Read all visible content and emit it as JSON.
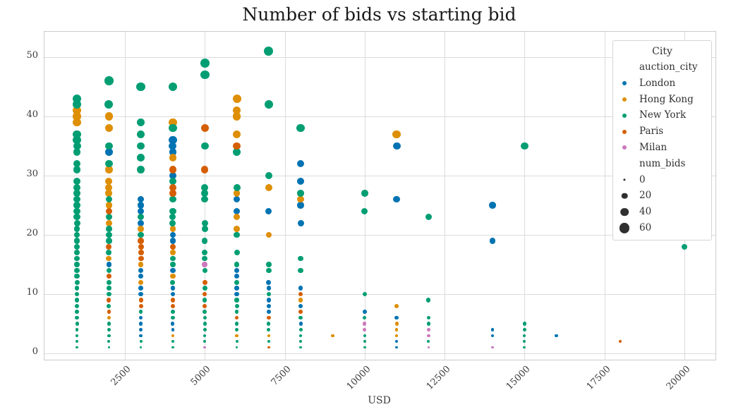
{
  "title": "Number of bids vs starting bid",
  "x_axis_label": "USD",
  "colors": {
    "London": "#0173b2",
    "Hong Kong": "#de8f05",
    "New York": "#029e73",
    "Paris": "#d55e00",
    "Milan": "#cc78bc",
    "size_marker": "#2f2f2f",
    "gridline": "#dcdcdc"
  },
  "legend": {
    "title": "City",
    "hue_header": "auction_city",
    "cities": [
      {
        "label": "London",
        "color": "#0173b2"
      },
      {
        "label": "Hong Kong",
        "color": "#de8f05"
      },
      {
        "label": "New York",
        "color": "#029e73"
      },
      {
        "label": "Paris",
        "color": "#d55e00"
      },
      {
        "label": "Milan",
        "color": "#cc78bc"
      }
    ],
    "size_header": "num_bids",
    "sizes": [
      {
        "label": "0",
        "value": 0
      },
      {
        "label": "20",
        "value": 20
      },
      {
        "label": "40",
        "value": 40
      },
      {
        "label": "60",
        "value": 60
      }
    ]
  },
  "chart_data": {
    "type": "scatter",
    "title": "Number of bids vs starting bid",
    "xlabel": "USD",
    "ylabel": "",
    "x_ticks": [
      2500,
      5000,
      7500,
      10000,
      12500,
      15000,
      17500,
      20000
    ],
    "y_ticks": [
      0,
      10,
      20,
      30,
      40,
      50
    ],
    "xlim": [
      0,
      21000
    ],
    "ylim": [
      -1,
      54
    ],
    "grid": true,
    "legend_position": "upper right",
    "size_encoding": "num_bids equals y value, size range ~0-60",
    "series": [
      {
        "name": "London",
        "color": "#0173b2",
        "points": [
          [
            2000,
            34
          ],
          [
            2000,
            15
          ],
          [
            3000,
            26
          ],
          [
            3000,
            25
          ],
          [
            3000,
            24
          ],
          [
            3000,
            22
          ],
          [
            3000,
            14
          ],
          [
            3000,
            13
          ],
          [
            3000,
            11
          ],
          [
            3000,
            10
          ],
          [
            3000,
            6
          ],
          [
            3000,
            5
          ],
          [
            3000,
            4
          ],
          [
            3000,
            3
          ],
          [
            4000,
            36
          ],
          [
            4000,
            35
          ],
          [
            4000,
            34
          ],
          [
            4000,
            30
          ],
          [
            4000,
            20
          ],
          [
            4000,
            19
          ],
          [
            4000,
            14
          ],
          [
            4000,
            11
          ],
          [
            4000,
            10
          ],
          [
            4000,
            5
          ],
          [
            4000,
            4
          ],
          [
            6000,
            26
          ],
          [
            6000,
            24
          ],
          [
            6000,
            14
          ],
          [
            6000,
            13
          ],
          [
            6000,
            11
          ],
          [
            6000,
            10
          ],
          [
            7000,
            24
          ],
          [
            7000,
            12
          ],
          [
            7000,
            11
          ],
          [
            7000,
            9
          ],
          [
            7000,
            8
          ],
          [
            7000,
            7
          ],
          [
            8000,
            32
          ],
          [
            8000,
            29
          ],
          [
            8000,
            25
          ],
          [
            8000,
            22
          ],
          [
            8000,
            11
          ],
          [
            8000,
            8
          ],
          [
            8000,
            5
          ],
          [
            10000,
            7
          ],
          [
            11000,
            35
          ],
          [
            11000,
            26
          ],
          [
            11000,
            6
          ],
          [
            11000,
            2
          ],
          [
            11000,
            1
          ],
          [
            14000,
            25
          ],
          [
            14000,
            19
          ],
          [
            14000,
            4
          ],
          [
            14000,
            3
          ],
          [
            16000,
            3
          ]
        ]
      },
      {
        "name": "Hong Kong",
        "color": "#de8f05",
        "points": [
          [
            1000,
            41
          ],
          [
            1000,
            40
          ],
          [
            1000,
            39
          ],
          [
            2000,
            40
          ],
          [
            2000,
            38
          ],
          [
            2000,
            31
          ],
          [
            2000,
            29
          ],
          [
            2000,
            28
          ],
          [
            2000,
            27
          ],
          [
            2000,
            25
          ],
          [
            2000,
            22
          ],
          [
            2000,
            16
          ],
          [
            2000,
            6
          ],
          [
            3000,
            21
          ],
          [
            3000,
            15
          ],
          [
            3000,
            12
          ],
          [
            4000,
            39
          ],
          [
            4000,
            33
          ],
          [
            4000,
            21
          ],
          [
            4000,
            17
          ],
          [
            4000,
            13
          ],
          [
            4000,
            3
          ],
          [
            6000,
            43
          ],
          [
            6000,
            41
          ],
          [
            6000,
            40
          ],
          [
            6000,
            37
          ],
          [
            6000,
            27
          ],
          [
            6000,
            23
          ],
          [
            6000,
            21
          ],
          [
            6000,
            3
          ],
          [
            7000,
            28
          ],
          [
            7000,
            20
          ],
          [
            7000,
            3
          ],
          [
            8000,
            26
          ],
          [
            8000,
            9
          ],
          [
            9000,
            3
          ],
          [
            11000,
            37
          ],
          [
            11000,
            8
          ],
          [
            11000,
            5
          ],
          [
            11000,
            4
          ],
          [
            11000,
            3
          ]
        ]
      },
      {
        "name": "New York",
        "color": "#029e73",
        "points": [
          [
            1000,
            43
          ],
          [
            1000,
            42
          ],
          [
            1000,
            37
          ],
          [
            1000,
            36
          ],
          [
            1000,
            35
          ],
          [
            1000,
            34
          ],
          [
            1000,
            32
          ],
          [
            1000,
            31
          ],
          [
            1000,
            29
          ],
          [
            1000,
            28
          ],
          [
            1000,
            27
          ],
          [
            1000,
            26
          ],
          [
            1000,
            25
          ],
          [
            1000,
            24
          ],
          [
            1000,
            23
          ],
          [
            1000,
            22
          ],
          [
            1000,
            21
          ],
          [
            1000,
            20
          ],
          [
            1000,
            19
          ],
          [
            1000,
            18
          ],
          [
            1000,
            17
          ],
          [
            1000,
            16
          ],
          [
            1000,
            15
          ],
          [
            1000,
            14
          ],
          [
            1000,
            13
          ],
          [
            1000,
            12
          ],
          [
            1000,
            11
          ],
          [
            1000,
            10
          ],
          [
            1000,
            9
          ],
          [
            1000,
            8
          ],
          [
            1000,
            7
          ],
          [
            1000,
            6
          ],
          [
            1000,
            5
          ],
          [
            1000,
            4
          ],
          [
            1000,
            3
          ],
          [
            1000,
            2
          ],
          [
            1000,
            1
          ],
          [
            2000,
            46
          ],
          [
            2000,
            42
          ],
          [
            2000,
            35
          ],
          [
            2000,
            32
          ],
          [
            2000,
            26
          ],
          [
            2000,
            23
          ],
          [
            2000,
            21
          ],
          [
            2000,
            20
          ],
          [
            2000,
            19
          ],
          [
            2000,
            17
          ],
          [
            2000,
            14
          ],
          [
            2000,
            12
          ],
          [
            2000,
            11
          ],
          [
            2000,
            10
          ],
          [
            2000,
            8
          ],
          [
            2000,
            5
          ],
          [
            2000,
            4
          ],
          [
            2000,
            3
          ],
          [
            2000,
            2
          ],
          [
            2000,
            1
          ],
          [
            3000,
            45
          ],
          [
            3000,
            39
          ],
          [
            3000,
            37
          ],
          [
            3000,
            35
          ],
          [
            3000,
            33
          ],
          [
            3000,
            31
          ],
          [
            3000,
            23
          ],
          [
            3000,
            20
          ],
          [
            3000,
            7
          ],
          [
            3000,
            2
          ],
          [
            3000,
            1
          ],
          [
            4000,
            45
          ],
          [
            4000,
            38
          ],
          [
            4000,
            29
          ],
          [
            4000,
            26
          ],
          [
            4000,
            24
          ],
          [
            4000,
            23
          ],
          [
            4000,
            22
          ],
          [
            4000,
            16
          ],
          [
            4000,
            15
          ],
          [
            4000,
            12
          ],
          [
            4000,
            7
          ],
          [
            4000,
            6
          ],
          [
            4000,
            2
          ],
          [
            4000,
            1
          ],
          [
            5000,
            49
          ],
          [
            5000,
            47
          ],
          [
            5000,
            35
          ],
          [
            5000,
            28
          ],
          [
            5000,
            27
          ],
          [
            5000,
            26
          ],
          [
            5000,
            22
          ],
          [
            5000,
            21
          ],
          [
            5000,
            19
          ],
          [
            5000,
            17
          ],
          [
            5000,
            16
          ],
          [
            5000,
            14
          ],
          [
            5000,
            11
          ],
          [
            5000,
            9
          ],
          [
            5000,
            7
          ],
          [
            5000,
            6
          ],
          [
            5000,
            5
          ],
          [
            5000,
            4
          ],
          [
            5000,
            3
          ],
          [
            5000,
            2
          ],
          [
            6000,
            34
          ],
          [
            6000,
            28
          ],
          [
            6000,
            20
          ],
          [
            6000,
            17
          ],
          [
            6000,
            15
          ],
          [
            6000,
            12
          ],
          [
            6000,
            9
          ],
          [
            6000,
            8
          ],
          [
            6000,
            7
          ],
          [
            6000,
            5
          ],
          [
            6000,
            4
          ],
          [
            6000,
            2
          ],
          [
            6000,
            1
          ],
          [
            7000,
            51
          ],
          [
            7000,
            42
          ],
          [
            7000,
            30
          ],
          [
            7000,
            15
          ],
          [
            7000,
            14
          ],
          [
            7000,
            10
          ],
          [
            7000,
            5
          ],
          [
            7000,
            4
          ],
          [
            7000,
            2
          ],
          [
            8000,
            38
          ],
          [
            8000,
            27
          ],
          [
            8000,
            16
          ],
          [
            8000,
            14
          ],
          [
            8000,
            6
          ],
          [
            8000,
            4
          ],
          [
            8000,
            3
          ],
          [
            8000,
            2
          ],
          [
            8000,
            1
          ],
          [
            10000,
            27
          ],
          [
            10000,
            24
          ],
          [
            10000,
            10
          ],
          [
            10000,
            6
          ],
          [
            10000,
            3
          ],
          [
            10000,
            2
          ],
          [
            10000,
            1
          ],
          [
            12000,
            23
          ],
          [
            12000,
            9
          ],
          [
            12000,
            6
          ],
          [
            12000,
            5
          ],
          [
            12000,
            2
          ],
          [
            15000,
            35
          ],
          [
            15000,
            5
          ],
          [
            15000,
            4
          ],
          [
            15000,
            3
          ],
          [
            15000,
            2
          ],
          [
            15000,
            1
          ],
          [
            20000,
            18
          ]
        ]
      },
      {
        "name": "Paris",
        "color": "#d55e00",
        "points": [
          [
            2000,
            24
          ],
          [
            2000,
            18
          ],
          [
            2000,
            13
          ],
          [
            2000,
            9
          ],
          [
            2000,
            7
          ],
          [
            3000,
            19
          ],
          [
            3000,
            18
          ],
          [
            3000,
            17
          ],
          [
            3000,
            16
          ],
          [
            3000,
            9
          ],
          [
            3000,
            8
          ],
          [
            4000,
            31
          ],
          [
            4000,
            28
          ],
          [
            4000,
            27
          ],
          [
            4000,
            18
          ],
          [
            4000,
            9
          ],
          [
            4000,
            8
          ],
          [
            5000,
            38
          ],
          [
            5000,
            31
          ],
          [
            5000,
            12
          ],
          [
            5000,
            10
          ],
          [
            5000,
            8
          ],
          [
            6000,
            35
          ],
          [
            6000,
            6
          ],
          [
            7000,
            6
          ],
          [
            7000,
            1
          ],
          [
            8000,
            10
          ],
          [
            8000,
            7
          ],
          [
            18000,
            2
          ]
        ]
      },
      {
        "name": "Milan",
        "color": "#cc78bc",
        "points": [
          [
            5000,
            15
          ],
          [
            5000,
            1
          ],
          [
            10000,
            5
          ],
          [
            10000,
            4
          ],
          [
            12000,
            4
          ],
          [
            12000,
            3
          ],
          [
            12000,
            1
          ],
          [
            14000,
            1
          ]
        ]
      }
    ]
  }
}
